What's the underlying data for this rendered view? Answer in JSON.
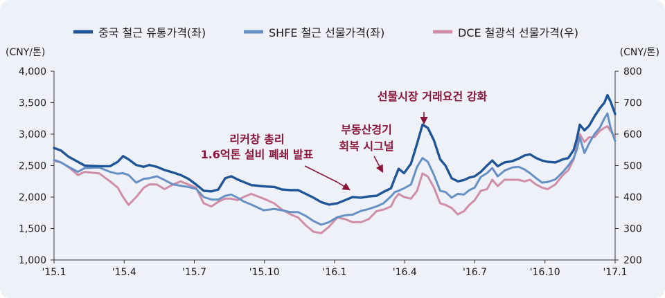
{
  "chart_data": {
    "type": "line",
    "legend": {
      "placement": "top-center"
    },
    "x_ticks": [
      "'15.1",
      "'15.4",
      "'15.7",
      "'15.10",
      "'16.1",
      "'16.4",
      "'16.7",
      "'16.10",
      "'17.1"
    ],
    "y_left": {
      "unit": "(CNY/톤)",
      "ylim": [
        1000,
        4000
      ],
      "ticks": [
        "1,000",
        "1,500",
        "2,000",
        "2,500",
        "3,000",
        "3,500",
        "4,000"
      ]
    },
    "y_right": {
      "unit": "(CNY/톤)",
      "ylim": [
        200,
        800
      ],
      "ticks": [
        "200",
        "300",
        "400",
        "500",
        "600",
        "700",
        "800"
      ]
    },
    "series": [
      {
        "name": "중국 철근 유통가격(좌)",
        "axis": "left",
        "color": "#1f5596",
        "values": [
          [
            "2015-01-01",
            2780
          ],
          [
            "2015-01-10",
            2740
          ],
          [
            "2015-01-20",
            2640
          ],
          [
            "2015-02-01",
            2560
          ],
          [
            "2015-02-10",
            2500
          ],
          [
            "2015-03-01",
            2490
          ],
          [
            "2015-03-15",
            2490
          ],
          [
            "2015-03-25",
            2560
          ],
          [
            "2015-04-01",
            2650
          ],
          [
            "2015-04-08",
            2600
          ],
          [
            "2015-04-18",
            2510
          ],
          [
            "2015-04-28",
            2480
          ],
          [
            "2015-05-05",
            2510
          ],
          [
            "2015-05-15",
            2480
          ],
          [
            "2015-05-25",
            2430
          ],
          [
            "2015-06-05",
            2390
          ],
          [
            "2015-06-15",
            2350
          ],
          [
            "2015-06-25",
            2290
          ],
          [
            "2015-07-05",
            2200
          ],
          [
            "2015-07-15",
            2100
          ],
          [
            "2015-07-25",
            2090
          ],
          [
            "2015-08-03",
            2120
          ],
          [
            "2015-08-12",
            2300
          ],
          [
            "2015-08-20",
            2330
          ],
          [
            "2015-08-28",
            2280
          ],
          [
            "2015-09-05",
            2240
          ],
          [
            "2015-09-15",
            2190
          ],
          [
            "2015-10-01",
            2170
          ],
          [
            "2015-10-15",
            2160
          ],
          [
            "2015-10-25",
            2120
          ],
          [
            "2015-11-05",
            2110
          ],
          [
            "2015-11-15",
            2110
          ],
          [
            "2015-11-25",
            2050
          ],
          [
            "2015-12-05",
            1990
          ],
          [
            "2015-12-15",
            1920
          ],
          [
            "2015-12-25",
            1880
          ],
          [
            "2016-01-05",
            1900
          ],
          [
            "2016-01-15",
            1950
          ],
          [
            "2016-01-25",
            2000
          ],
          [
            "2016-02-05",
            1990
          ],
          [
            "2016-02-15",
            2010
          ],
          [
            "2016-02-25",
            2020
          ],
          [
            "2016-03-05",
            2080
          ],
          [
            "2016-03-15",
            2140
          ],
          [
            "2016-03-20",
            2300
          ],
          [
            "2016-03-25",
            2450
          ],
          [
            "2016-04-01",
            2380
          ],
          [
            "2016-04-10",
            2530
          ],
          [
            "2016-04-18",
            2850
          ],
          [
            "2016-04-25",
            3150
          ],
          [
            "2016-05-02",
            3100
          ],
          [
            "2016-05-10",
            2900
          ],
          [
            "2016-05-18",
            2600
          ],
          [
            "2016-05-25",
            2500
          ],
          [
            "2016-06-02",
            2300
          ],
          [
            "2016-06-10",
            2250
          ],
          [
            "2016-06-18",
            2270
          ],
          [
            "2016-06-25",
            2310
          ],
          [
            "2016-07-02",
            2330
          ],
          [
            "2016-07-10",
            2400
          ],
          [
            "2016-07-18",
            2500
          ],
          [
            "2016-07-25",
            2580
          ],
          [
            "2016-08-01",
            2490
          ],
          [
            "2016-08-10",
            2550
          ],
          [
            "2016-08-20",
            2570
          ],
          [
            "2016-08-28",
            2610
          ],
          [
            "2016-09-05",
            2660
          ],
          [
            "2016-09-12",
            2680
          ],
          [
            "2016-09-20",
            2620
          ],
          [
            "2016-09-28",
            2580
          ],
          [
            "2016-10-05",
            2560
          ],
          [
            "2016-10-15",
            2550
          ],
          [
            "2016-10-25",
            2600
          ],
          [
            "2016-11-01",
            2620
          ],
          [
            "2016-11-08",
            2750
          ],
          [
            "2016-11-12",
            2920
          ],
          [
            "2016-11-16",
            3150
          ],
          [
            "2016-11-22",
            3060
          ],
          [
            "2016-11-28",
            3130
          ],
          [
            "2016-12-05",
            3280
          ],
          [
            "2016-12-12",
            3410
          ],
          [
            "2016-12-18",
            3500
          ],
          [
            "2016-12-22",
            3620
          ],
          [
            "2016-12-26",
            3520
          ],
          [
            "2017-01-01",
            3320
          ]
        ]
      },
      {
        "name": "SHFE 철근 선물가격(좌)",
        "axis": "left",
        "color": "#6690c4",
        "values": [
          [
            "2015-01-01",
            2590
          ],
          [
            "2015-01-10",
            2550
          ],
          [
            "2015-01-20",
            2480
          ],
          [
            "2015-02-01",
            2400
          ],
          [
            "2015-02-10",
            2460
          ],
          [
            "2015-03-01",
            2470
          ],
          [
            "2015-03-15",
            2400
          ],
          [
            "2015-03-25",
            2370
          ],
          [
            "2015-04-01",
            2380
          ],
          [
            "2015-04-08",
            2350
          ],
          [
            "2015-04-18",
            2230
          ],
          [
            "2015-04-28",
            2290
          ],
          [
            "2015-05-05",
            2300
          ],
          [
            "2015-05-15",
            2330
          ],
          [
            "2015-05-25",
            2270
          ],
          [
            "2015-06-05",
            2200
          ],
          [
            "2015-06-15",
            2180
          ],
          [
            "2015-06-25",
            2160
          ],
          [
            "2015-07-05",
            2130
          ],
          [
            "2015-07-15",
            2000
          ],
          [
            "2015-07-25",
            1960
          ],
          [
            "2015-08-03",
            1960
          ],
          [
            "2015-08-12",
            2020
          ],
          [
            "2015-08-20",
            2040
          ],
          [
            "2015-08-28",
            1990
          ],
          [
            "2015-09-05",
            1930
          ],
          [
            "2015-09-15",
            1880
          ],
          [
            "2015-10-01",
            1790
          ],
          [
            "2015-10-15",
            1810
          ],
          [
            "2015-10-25",
            1790
          ],
          [
            "2015-11-05",
            1760
          ],
          [
            "2015-11-15",
            1760
          ],
          [
            "2015-11-25",
            1700
          ],
          [
            "2015-12-05",
            1620
          ],
          [
            "2015-12-15",
            1560
          ],
          [
            "2015-12-25",
            1600
          ],
          [
            "2016-01-05",
            1680
          ],
          [
            "2016-01-15",
            1710
          ],
          [
            "2016-01-25",
            1720
          ],
          [
            "2016-02-05",
            1780
          ],
          [
            "2016-02-15",
            1810
          ],
          [
            "2016-02-25",
            1850
          ],
          [
            "2016-03-05",
            1900
          ],
          [
            "2016-03-15",
            2010
          ],
          [
            "2016-03-20",
            2080
          ],
          [
            "2016-03-25",
            2100
          ],
          [
            "2016-04-01",
            2140
          ],
          [
            "2016-04-10",
            2200
          ],
          [
            "2016-04-18",
            2480
          ],
          [
            "2016-04-25",
            2620
          ],
          [
            "2016-05-02",
            2560
          ],
          [
            "2016-05-10",
            2350
          ],
          [
            "2016-05-18",
            2100
          ],
          [
            "2016-05-25",
            2080
          ],
          [
            "2016-06-02",
            1990
          ],
          [
            "2016-06-10",
            2050
          ],
          [
            "2016-06-18",
            2040
          ],
          [
            "2016-06-25",
            2110
          ],
          [
            "2016-07-02",
            2150
          ],
          [
            "2016-07-10",
            2320
          ],
          [
            "2016-07-18",
            2380
          ],
          [
            "2016-07-25",
            2460
          ],
          [
            "2016-08-01",
            2330
          ],
          [
            "2016-08-10",
            2420
          ],
          [
            "2016-08-20",
            2470
          ],
          [
            "2016-08-28",
            2480
          ],
          [
            "2016-09-05",
            2440
          ],
          [
            "2016-09-12",
            2380
          ],
          [
            "2016-09-20",
            2300
          ],
          [
            "2016-09-28",
            2230
          ],
          [
            "2016-10-05",
            2240
          ],
          [
            "2016-10-15",
            2280
          ],
          [
            "2016-10-25",
            2400
          ],
          [
            "2016-11-01",
            2500
          ],
          [
            "2016-11-08",
            2620
          ],
          [
            "2016-11-12",
            2750
          ],
          [
            "2016-11-16",
            2950
          ],
          [
            "2016-11-22",
            2700
          ],
          [
            "2016-11-28",
            2850
          ],
          [
            "2016-12-05",
            3000
          ],
          [
            "2016-12-12",
            3100
          ],
          [
            "2016-12-18",
            3250
          ],
          [
            "2016-12-22",
            3330
          ],
          [
            "2016-12-26",
            3100
          ],
          [
            "2017-01-01",
            2890
          ]
        ]
      },
      {
        "name": "DCE 철광석 선물가격(우)",
        "axis": "right",
        "color": "#cf8ea5",
        "values": [
          [
            "2015-01-01",
            515
          ],
          [
            "2015-01-10",
            510
          ],
          [
            "2015-01-20",
            495
          ],
          [
            "2015-02-01",
            470
          ],
          [
            "2015-02-10",
            480
          ],
          [
            "2015-03-01",
            475
          ],
          [
            "2015-03-15",
            450
          ],
          [
            "2015-03-25",
            430
          ],
          [
            "2015-04-01",
            400
          ],
          [
            "2015-04-08",
            375
          ],
          [
            "2015-04-18",
            400
          ],
          [
            "2015-04-28",
            430
          ],
          [
            "2015-05-05",
            440
          ],
          [
            "2015-05-15",
            440
          ],
          [
            "2015-05-25",
            425
          ],
          [
            "2015-06-05",
            440
          ],
          [
            "2015-06-15",
            450
          ],
          [
            "2015-06-25",
            440
          ],
          [
            "2015-07-05",
            430
          ],
          [
            "2015-07-15",
            380
          ],
          [
            "2015-07-25",
            370
          ],
          [
            "2015-08-03",
            385
          ],
          [
            "2015-08-12",
            395
          ],
          [
            "2015-08-20",
            395
          ],
          [
            "2015-08-28",
            390
          ],
          [
            "2015-09-05",
            400
          ],
          [
            "2015-09-15",
            410
          ],
          [
            "2015-10-01",
            395
          ],
          [
            "2015-10-15",
            380
          ],
          [
            "2015-10-25",
            360
          ],
          [
            "2015-11-05",
            345
          ],
          [
            "2015-11-15",
            335
          ],
          [
            "2015-11-25",
            310
          ],
          [
            "2015-12-05",
            290
          ],
          [
            "2015-12-15",
            285
          ],
          [
            "2015-12-25",
            305
          ],
          [
            "2016-01-05",
            335
          ],
          [
            "2016-01-15",
            330
          ],
          [
            "2016-01-25",
            320
          ],
          [
            "2016-02-05",
            320
          ],
          [
            "2016-02-15",
            330
          ],
          [
            "2016-02-25",
            355
          ],
          [
            "2016-03-05",
            360
          ],
          [
            "2016-03-15",
            370
          ],
          [
            "2016-03-20",
            395
          ],
          [
            "2016-03-25",
            410
          ],
          [
            "2016-04-01",
            400
          ],
          [
            "2016-04-10",
            395
          ],
          [
            "2016-04-18",
            420
          ],
          [
            "2016-04-25",
            475
          ],
          [
            "2016-05-02",
            465
          ],
          [
            "2016-05-10",
            430
          ],
          [
            "2016-05-18",
            380
          ],
          [
            "2016-05-25",
            375
          ],
          [
            "2016-06-02",
            365
          ],
          [
            "2016-06-10",
            345
          ],
          [
            "2016-06-18",
            355
          ],
          [
            "2016-06-25",
            375
          ],
          [
            "2016-07-02",
            390
          ],
          [
            "2016-07-10",
            420
          ],
          [
            "2016-07-18",
            425
          ],
          [
            "2016-07-25",
            455
          ],
          [
            "2016-08-01",
            435
          ],
          [
            "2016-08-10",
            455
          ],
          [
            "2016-08-20",
            455
          ],
          [
            "2016-08-28",
            455
          ],
          [
            "2016-09-05",
            450
          ],
          [
            "2016-09-12",
            455
          ],
          [
            "2016-09-20",
            440
          ],
          [
            "2016-09-28",
            430
          ],
          [
            "2016-10-05",
            425
          ],
          [
            "2016-10-15",
            440
          ],
          [
            "2016-10-25",
            470
          ],
          [
            "2016-11-01",
            485
          ],
          [
            "2016-11-08",
            520
          ],
          [
            "2016-11-12",
            560
          ],
          [
            "2016-11-16",
            600
          ],
          [
            "2016-11-22",
            575
          ],
          [
            "2016-11-28",
            590
          ],
          [
            "2016-12-05",
            590
          ],
          [
            "2016-12-12",
            610
          ],
          [
            "2016-12-18",
            620
          ],
          [
            "2016-12-22",
            625
          ],
          [
            "2016-12-26",
            610
          ],
          [
            "2017-01-01",
            590
          ]
        ]
      }
    ],
    "annotations": [
      {
        "id": "li-keqiang",
        "lines": [
          "리커창 총리",
          "1.6억톤 설비 폐쇄 발표"
        ],
        "target": [
          "2016-01-22",
          1990
        ]
      },
      {
        "id": "real-estate",
        "lines": [
          "부동산경기",
          "회복 시그널"
        ],
        "target": [
          "2016-03-15",
          2110
        ]
      },
      {
        "id": "futures-tighten",
        "lines": [
          "선물시장 거래요건 강화"
        ],
        "target": [
          "2016-04-25",
          3160
        ]
      }
    ]
  }
}
